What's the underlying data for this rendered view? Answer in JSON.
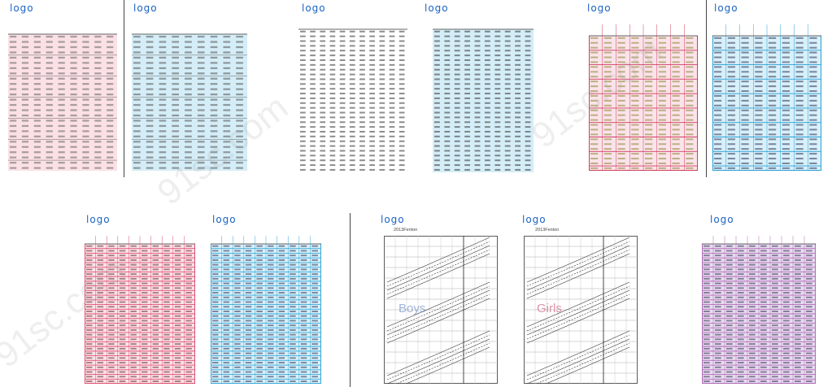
{
  "logos": [
    "logo",
    "logo",
    "logo",
    "logo",
    "logo",
    "logo",
    "logo",
    "logo",
    "logo",
    "logo",
    "logo"
  ],
  "watermarks": [
    "91sc.com",
    "91sc.com",
    "91sc.com"
  ],
  "chart_labels": {
    "boys": "Boys",
    "girls": "Girls"
  },
  "colors": {
    "pink": "#f8d7df",
    "blue": "#cfeaf6",
    "pink_grid": "#e05070",
    "blue_grid": "#3aa8d6",
    "logo": "#1a62c4"
  },
  "growth_chart_titles": [
    "2013Fenton",
    "2013Fenton"
  ]
}
